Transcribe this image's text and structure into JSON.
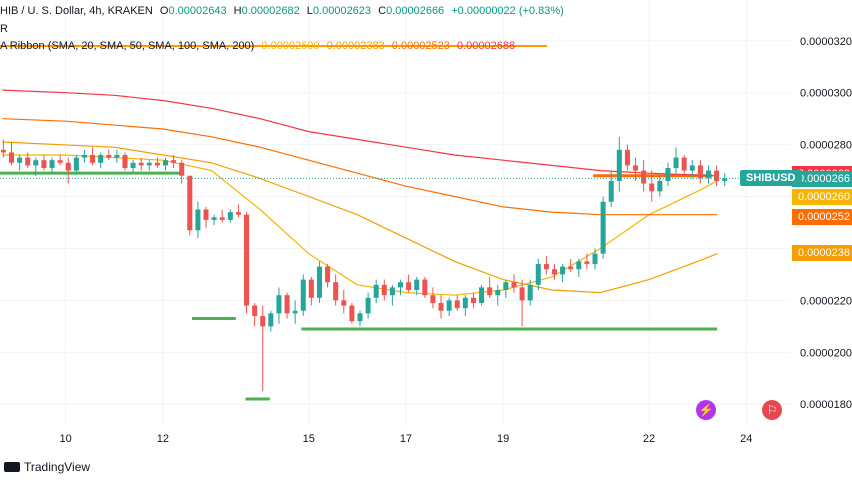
{
  "header": {
    "pair": "HIB / U. S. Dollar, 4h, KRAKEN",
    "o_label": "O",
    "o_value": "0.00002643",
    "h_label": "H",
    "h_value": "0.00002682",
    "l_label": "L",
    "l_value": "0.00002623",
    "c_label": "C",
    "c_value": "0.00002666",
    "change": "+0.00000022 (+0.83%)",
    "line2": "R",
    "ribbon_label": "A Ribbon (SMA, 20, SMA, 50, SMA, 100, SMA, 200)",
    "ribbon_values": [
      "0.00002600",
      "0.00002383",
      "0.00002523",
      "0.00002688"
    ]
  },
  "price_scale": {
    "labels": [
      "0.0000320",
      "0.0000300",
      "0.0000280",
      "0.0000220",
      "0.0000200",
      "0.0000180"
    ],
    "badges": [
      {
        "text": "0.0000268",
        "color": "#f23645",
        "value": 2.688e-05
      },
      {
        "text": "0.0000266",
        "color": "#26a69a",
        "value": 2.666e-05
      },
      {
        "text": "0.0000260",
        "color": "#f7b500",
        "value": 2.6e-05
      },
      {
        "text": "0.0000252",
        "color": "#ff6d00",
        "value": 2.523e-05
      },
      {
        "text": "0.0000238",
        "color": "#f59d00",
        "value": 2.383e-05
      }
    ],
    "symbol": "SHIBUSD"
  },
  "time_axis": {
    "labels": [
      "10",
      "12",
      "15",
      "17",
      "19",
      "22",
      "24"
    ]
  },
  "footer": {
    "brand": "TradingView"
  },
  "colors": {
    "up": "#26a69a",
    "down": "#ef5350",
    "sma20": "#f7b500",
    "sma50": "#f59d00",
    "sma100": "#ff6d00",
    "sma200": "#f23645",
    "support": "#4caf50"
  },
  "chart_data": {
    "type": "candlestick",
    "title": "",
    "ylim": [
      1.72e-05,
      3.28e-05
    ],
    "x_range": [
      8.65,
      24.9
    ],
    "x_ticks": [
      10,
      12,
      15,
      17,
      19,
      22,
      24
    ],
    "candles_t0": 8.72,
    "candles_step": 0.1667,
    "candles": [
      [
        2.78e-05,
        2.82e-05,
        2.75e-05,
        2.77e-05
      ],
      [
        2.77e-05,
        2.81e-05,
        2.72e-05,
        2.73e-05
      ],
      [
        2.73e-05,
        2.76e-05,
        2.7e-05,
        2.75e-05
      ],
      [
        2.75e-05,
        2.77e-05,
        2.71e-05,
        2.72e-05
      ],
      [
        2.72e-05,
        2.75e-05,
        2.68e-05,
        2.74e-05
      ],
      [
        2.74e-05,
        2.76e-05,
        2.7e-05,
        2.71e-05
      ],
      [
        2.71e-05,
        2.75e-05,
        2.69e-05,
        2.74e-05
      ],
      [
        2.74e-05,
        2.76e-05,
        2.72e-05,
        2.73e-05
      ],
      [
        2.73e-05,
        2.75e-05,
        2.65e-05,
        2.7e-05
      ],
      [
        2.7e-05,
        2.76e-05,
        2.69e-05,
        2.75e-05
      ],
      [
        2.75e-05,
        2.78e-05,
        2.73e-05,
        2.76e-05
      ],
      [
        2.76e-05,
        2.79e-05,
        2.72e-05,
        2.73e-05
      ],
      [
        2.73e-05,
        2.77e-05,
        2.71e-05,
        2.76e-05
      ],
      [
        2.76e-05,
        2.78e-05,
        2.74e-05,
        2.75e-05
      ],
      [
        2.75e-05,
        2.78e-05,
        2.73e-05,
        2.76e-05
      ],
      [
        2.76e-05,
        2.77e-05,
        2.7e-05,
        2.71e-05
      ],
      [
        2.71e-05,
        2.74e-05,
        2.69e-05,
        2.73e-05
      ],
      [
        2.73e-05,
        2.75e-05,
        2.7e-05,
        2.72e-05
      ],
      [
        2.72e-05,
        2.74e-05,
        2.7e-05,
        2.73e-05
      ],
      [
        2.73e-05,
        2.75e-05,
        2.71e-05,
        2.72e-05
      ],
      [
        2.72e-05,
        2.75e-05,
        2.7e-05,
        2.74e-05
      ],
      [
        2.74e-05,
        2.76e-05,
        2.71e-05,
        2.73e-05
      ],
      [
        2.73e-05,
        2.74e-05,
        2.65e-05,
        2.68e-05
      ],
      [
        2.68e-05,
        2.68e-05,
        2.45e-05,
        2.47e-05
      ],
      [
        2.47e-05,
        2.58e-05,
        2.44e-05,
        2.55e-05
      ],
      [
        2.55e-05,
        2.56e-05,
        2.48e-05,
        2.51e-05
      ],
      [
        2.51e-05,
        2.53e-05,
        2.49e-05,
        2.52e-05
      ],
      [
        2.52e-05,
        2.55e-05,
        2.5e-05,
        2.51e-05
      ],
      [
        2.51e-05,
        2.55e-05,
        2.5e-05,
        2.54e-05
      ],
      [
        2.54e-05,
        2.57e-05,
        2.52e-05,
        2.53e-05
      ],
      [
        2.53e-05,
        2.54e-05,
        2.15e-05,
        2.18e-05
      ],
      [
        2.18e-05,
        2.19e-05,
        2.1e-05,
        2.14e-05
      ],
      [
        2.14e-05,
        2.18e-05,
        1.85e-05,
        2.1e-05
      ],
      [
        2.1e-05,
        2.16e-05,
        2.08e-05,
        2.15e-05
      ],
      [
        2.15e-05,
        2.25e-05,
        2.11e-05,
        2.22e-05
      ],
      [
        2.22e-05,
        2.23e-05,
        2.13e-05,
        2.15e-05
      ],
      [
        2.15e-05,
        2.2e-05,
        2.11e-05,
        2.16e-05
      ],
      [
        2.16e-05,
        2.3e-05,
        2.14e-05,
        2.28e-05
      ],
      [
        2.28e-05,
        2.29e-05,
        2.18e-05,
        2.21e-05
      ],
      [
        2.21e-05,
        2.35e-05,
        2.19e-05,
        2.33e-05
      ],
      [
        2.33e-05,
        2.34e-05,
        2.25e-05,
        2.27e-05
      ],
      [
        2.27e-05,
        2.3e-05,
        2.18e-05,
        2.2e-05
      ],
      [
        2.2e-05,
        2.24e-05,
        2.15e-05,
        2.18e-05
      ],
      [
        2.18e-05,
        2.19e-05,
        2.11e-05,
        2.12e-05
      ],
      [
        2.12e-05,
        2.16e-05,
        2.1e-05,
        2.15e-05
      ],
      [
        2.15e-05,
        2.23e-05,
        2.13e-05,
        2.21e-05
      ],
      [
        2.21e-05,
        2.28e-05,
        2.19e-05,
        2.26e-05
      ],
      [
        2.26e-05,
        2.28e-05,
        2.2e-05,
        2.22e-05
      ],
      [
        2.22e-05,
        2.26e-05,
        2.18e-05,
        2.25e-05
      ],
      [
        2.25e-05,
        2.28e-05,
        2.22e-05,
        2.27e-05
      ],
      [
        2.27e-05,
        2.3e-05,
        2.23e-05,
        2.24e-05
      ],
      [
        2.24e-05,
        2.29e-05,
        2.22e-05,
        2.28e-05
      ],
      [
        2.28e-05,
        2.29e-05,
        2.21e-05,
        2.22e-05
      ],
      [
        2.22e-05,
        2.25e-05,
        2.17e-05,
        2.19e-05
      ],
      [
        2.19e-05,
        2.22e-05,
        2.13e-05,
        2.16e-05
      ],
      [
        2.16e-05,
        2.21e-05,
        2.14e-05,
        2.2e-05
      ],
      [
        2.2e-05,
        2.22e-05,
        2.16e-05,
        2.17e-05
      ],
      [
        2.17e-05,
        2.22e-05,
        2.14e-05,
        2.21e-05
      ],
      [
        2.21e-05,
        2.23e-05,
        2.17e-05,
        2.19e-05
      ],
      [
        2.19e-05,
        2.26e-05,
        2.18e-05,
        2.25e-05
      ],
      [
        2.25e-05,
        2.29e-05,
        2.21e-05,
        2.22e-05
      ],
      [
        2.22e-05,
        2.26e-05,
        2.18e-05,
        2.24e-05
      ],
      [
        2.24e-05,
        2.28e-05,
        2.21e-05,
        2.27e-05
      ],
      [
        2.27e-05,
        2.3e-05,
        2.23e-05,
        2.25e-05
      ],
      [
        2.25e-05,
        2.28e-05,
        2.1e-05,
        2.2e-05
      ],
      [
        2.2e-05,
        2.28e-05,
        2.18e-05,
        2.26e-05
      ],
      [
        2.26e-05,
        2.36e-05,
        2.24e-05,
        2.34e-05
      ],
      [
        2.34e-05,
        2.37e-05,
        2.3e-05,
        2.32e-05
      ],
      [
        2.32e-05,
        2.34e-05,
        2.28e-05,
        2.3e-05
      ],
      [
        2.3e-05,
        2.34e-05,
        2.27e-05,
        2.33e-05
      ],
      [
        2.33e-05,
        2.36e-05,
        2.31e-05,
        2.32e-05
      ],
      [
        2.32e-05,
        2.36e-05,
        2.29e-05,
        2.35e-05
      ],
      [
        2.35e-05,
        2.38e-05,
        2.32e-05,
        2.34e-05
      ],
      [
        2.34e-05,
        2.4e-05,
        2.32e-05,
        2.38e-05
      ],
      [
        2.38e-05,
        2.6e-05,
        2.36e-05,
        2.58e-05
      ],
      [
        2.58e-05,
        2.7e-05,
        2.56e-05,
        2.66e-05
      ],
      [
        2.66e-05,
        2.83e-05,
        2.62e-05,
        2.78e-05
      ],
      [
        2.78e-05,
        2.8e-05,
        2.7e-05,
        2.72e-05
      ],
      [
        2.72e-05,
        2.75e-05,
        2.66e-05,
        2.7e-05
      ],
      [
        2.7e-05,
        2.74e-05,
        2.62e-05,
        2.65e-05
      ],
      [
        2.65e-05,
        2.7e-05,
        2.58e-05,
        2.62e-05
      ],
      [
        2.62e-05,
        2.68e-05,
        2.6e-05,
        2.66e-05
      ],
      [
        2.66e-05,
        2.73e-05,
        2.64e-05,
        2.71e-05
      ],
      [
        2.71e-05,
        2.79e-05,
        2.69e-05,
        2.75e-05
      ],
      [
        2.75e-05,
        2.76e-05,
        2.68e-05,
        2.7e-05
      ],
      [
        2.7e-05,
        2.74e-05,
        2.67e-05,
        2.72e-05
      ],
      [
        2.72e-05,
        2.74e-05,
        2.65e-05,
        2.67e-05
      ],
      [
        2.67e-05,
        2.72e-05,
        2.65e-05,
        2.7e-05
      ],
      [
        2.7e-05,
        2.72e-05,
        2.64e-05,
        2.66e-05
      ],
      [
        2.66e-05,
        2.69e-05,
        2.64e-05,
        2.67e-05
      ]
    ],
    "sma": [
      {
        "period": 20,
        "color": "#f7b500",
        "points": [
          [
            8.7,
            2.76e-05
          ],
          [
            10,
            2.76e-05
          ],
          [
            12,
            2.74e-05
          ],
          [
            13,
            2.7e-05
          ],
          [
            14,
            2.55e-05
          ],
          [
            15,
            2.38e-05
          ],
          [
            16,
            2.26e-05
          ],
          [
            17,
            2.23e-05
          ],
          [
            18,
            2.22e-05
          ],
          [
            19,
            2.24e-05
          ],
          [
            20,
            2.29e-05
          ],
          [
            21,
            2.4e-05
          ],
          [
            22,
            2.53e-05
          ],
          [
            23,
            2.62e-05
          ],
          [
            23.4,
            2.66e-05
          ]
        ]
      },
      {
        "period": 50,
        "color": "#f59d00",
        "points": [
          [
            8.7,
            2.81e-05
          ],
          [
            11,
            2.79e-05
          ],
          [
            12,
            2.76e-05
          ],
          [
            13,
            2.73e-05
          ],
          [
            14,
            2.67e-05
          ],
          [
            15,
            2.6e-05
          ],
          [
            16,
            2.53e-05
          ],
          [
            17,
            2.44e-05
          ],
          [
            18,
            2.35e-05
          ],
          [
            19,
            2.28e-05
          ],
          [
            20,
            2.24e-05
          ],
          [
            21,
            2.23e-05
          ],
          [
            22,
            2.28e-05
          ],
          [
            23,
            2.35e-05
          ],
          [
            23.4,
            2.38e-05
          ]
        ]
      },
      {
        "period": 100,
        "color": "#ff6d00",
        "points": [
          [
            8.7,
            2.9e-05
          ],
          [
            10,
            2.89e-05
          ],
          [
            12,
            2.86e-05
          ],
          [
            13,
            2.83e-05
          ],
          [
            14,
            2.79e-05
          ],
          [
            15,
            2.74e-05
          ],
          [
            16,
            2.69e-05
          ],
          [
            17,
            2.64e-05
          ],
          [
            18,
            2.6e-05
          ],
          [
            19,
            2.56e-05
          ],
          [
            20,
            2.54e-05
          ],
          [
            21,
            2.53e-05
          ],
          [
            22,
            2.53e-05
          ],
          [
            23.4,
            2.53e-05
          ]
        ]
      },
      {
        "period": 200,
        "color": "#f23645",
        "points": [
          [
            8.7,
            3.01e-05
          ],
          [
            10,
            3e-05
          ],
          [
            11,
            2.99e-05
          ],
          [
            12,
            2.97e-05
          ],
          [
            13,
            2.94e-05
          ],
          [
            14,
            2.9e-05
          ],
          [
            15,
            2.85e-05
          ],
          [
            16,
            2.82e-05
          ],
          [
            17,
            2.79e-05
          ],
          [
            18,
            2.76e-05
          ],
          [
            19,
            2.74e-05
          ],
          [
            20,
            2.72e-05
          ],
          [
            21,
            2.7e-05
          ],
          [
            22,
            2.69e-05
          ],
          [
            23.4,
            2.68e-05
          ]
        ]
      }
    ],
    "levels": [
      {
        "y": 2.69e-05,
        "x0": 8.65,
        "x1": 12.35,
        "color": "#4caf50"
      },
      {
        "y": 2.13e-05,
        "x0": 12.6,
        "x1": 13.5,
        "color": "#4caf50"
      },
      {
        "y": 1.82e-05,
        "x0": 13.7,
        "x1": 14.2,
        "color": "#4caf50"
      },
      {
        "y": 2.09e-05,
        "x0": 14.85,
        "x1": 23.4,
        "color": "#4caf50"
      },
      {
        "y": 2.68e-05,
        "x0": 20.85,
        "x1": 23.3,
        "color": "#ff6d00"
      }
    ],
    "top_line": {
      "y": 3.18e-05,
      "x0": 8.65,
      "x1": 19.9,
      "color": "#ff9800"
    }
  }
}
